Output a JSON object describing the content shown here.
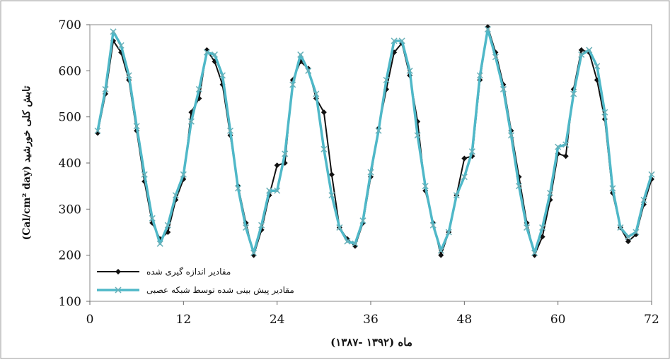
{
  "chart_data": {
    "type": "line",
    "x_label": "ماه (۱۳۹۲ -۱۳۸۷)",
    "y_label": "(Cal/cm² day) تابش کلی خورشید",
    "x": [
      1,
      2,
      3,
      4,
      5,
      6,
      7,
      8,
      9,
      10,
      11,
      12,
      13,
      14,
      15,
      16,
      17,
      18,
      19,
      20,
      21,
      22,
      23,
      24,
      25,
      26,
      27,
      28,
      29,
      30,
      31,
      32,
      33,
      34,
      35,
      36,
      37,
      38,
      39,
      40,
      41,
      42,
      43,
      44,
      45,
      46,
      47,
      48,
      49,
      50,
      51,
      52,
      53,
      54,
      55,
      56,
      57,
      58,
      59,
      60,
      61,
      62,
      63,
      64,
      65,
      66,
      67,
      68,
      69,
      70,
      71,
      72
    ],
    "series": [
      {
        "name": "مقادیر اندازه گیری شده",
        "color": "#111111",
        "marker": "diamond",
        "values": [
          465,
          550,
          665,
          640,
          580,
          470,
          360,
          270,
          235,
          250,
          320,
          365,
          510,
          540,
          645,
          620,
          570,
          460,
          350,
          270,
          200,
          255,
          330,
          395,
          400,
          580,
          620,
          605,
          540,
          510,
          375,
          260,
          235,
          220,
          270,
          370,
          475,
          560,
          640,
          660,
          590,
          490,
          340,
          270,
          200,
          250,
          330,
          410,
          415,
          580,
          695,
          640,
          570,
          470,
          370,
          270,
          200,
          240,
          320,
          420,
          415,
          560,
          645,
          640,
          580,
          495,
          335,
          260,
          230,
          245,
          310,
          365
        ]
      },
      {
        "name": "مقادیر پیش بینی شده توسط شبکه عصبی",
        "color": "#4fb8c8",
        "marker": "x",
        "values": [
          470,
          560,
          685,
          655,
          590,
          480,
          375,
          280,
          225,
          265,
          330,
          375,
          490,
          560,
          640,
          635,
          590,
          470,
          345,
          260,
          205,
          265,
          340,
          340,
          420,
          570,
          635,
          600,
          550,
          430,
          330,
          260,
          230,
          225,
          275,
          380,
          470,
          580,
          665,
          665,
          600,
          460,
          350,
          265,
          210,
          250,
          330,
          370,
          425,
          590,
          690,
          630,
          560,
          460,
          350,
          260,
          205,
          260,
          335,
          435,
          440,
          550,
          635,
          645,
          610,
          510,
          345,
          260,
          240,
          250,
          320,
          375
        ]
      }
    ],
    "xlim": [
      0,
      72
    ],
    "xticks": [
      0,
      12,
      24,
      36,
      48,
      60,
      72
    ],
    "ylim": [
      100,
      700
    ],
    "yticks": [
      100,
      200,
      300,
      400,
      500,
      600,
      700
    ],
    "legend": "lower left"
  }
}
